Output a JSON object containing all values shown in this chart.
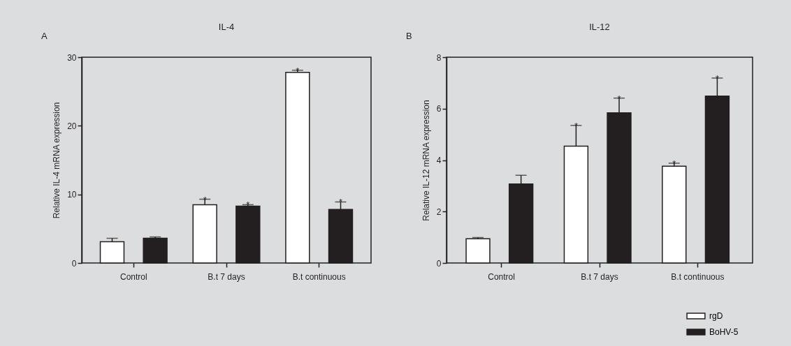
{
  "chart_data": [
    {
      "type": "bar",
      "title": "IL-4",
      "ylabel": "Relative IL-4 mRNA expression",
      "categories": [
        "Control",
        "B.t 7 days",
        "B.t continuous"
      ],
      "series": [
        {
          "color": "#ffffff",
          "values": [
            3.1,
            8.5,
            27.8
          ],
          "errors": [
            [
              3.1,
              3.6
            ],
            [
              8.5,
              9.3
            ],
            [
              27.8,
              28.1
            ]
          ],
          "value_labels": [
            null,
            "*",
            "*"
          ]
        },
        {
          "color": "#231f20",
          "values": [
            3.6,
            8.3,
            7.8
          ],
          "errors": [
            [
              3.6,
              3.8
            ],
            [
              8.3,
              8.5
            ],
            [
              7.8,
              8.9
            ]
          ],
          "value_labels": [
            null,
            "*",
            "*"
          ]
        }
      ],
      "ylim": [
        0,
        30
      ],
      "yticks": [
        0,
        10,
        20,
        30
      ],
      "grid": false,
      "legend": false,
      "annotations": [
        "A"
      ]
    },
    {
      "type": "bar",
      "title": "IL-12",
      "ylabel": "Relative IL-12 mRNA expression",
      "categories": [
        "Control",
        "B.t 7 days",
        "B.t continuous"
      ],
      "series": [
        {
          "name": "rgD",
          "color": "#ffffff",
          "values": [
            0.94,
            4.54,
            3.76
          ],
          "errors": [
            [
              0.94,
              0.99
            ],
            [
              4.54,
              5.35
            ],
            [
              3.76,
              3.88
            ]
          ],
          "value_labels": [
            null,
            "*",
            "*"
          ]
        },
        {
          "name": "BoHV-5",
          "color": "#231f20",
          "values": [
            3.07,
            5.84,
            6.49
          ],
          "errors": [
            [
              3.07,
              3.41
            ],
            [
              5.84,
              6.41
            ],
            [
              6.49,
              7.19
            ]
          ],
          "value_labels": [
            null,
            "*",
            "*"
          ]
        }
      ],
      "ylim": [
        0,
        8
      ],
      "yticks": [
        0,
        2,
        4,
        6,
        8
      ],
      "grid": false,
      "legend": "bottom right",
      "annotations": [
        "B"
      ]
    }
  ]
}
